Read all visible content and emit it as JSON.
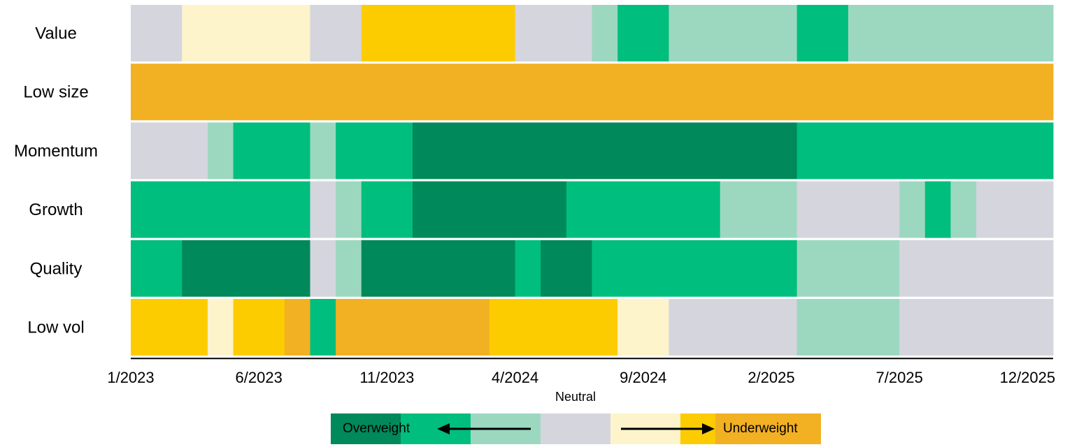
{
  "chart_data": {
    "type": "heatmap",
    "title": "",
    "x_tick_labels": [
      "1/2023",
      "6/2023",
      "11/2023",
      "4/2024",
      "9/2024",
      "2/2025",
      "7/2025",
      "12/2025"
    ],
    "x_start": "1/2023",
    "x_end": "12/2025",
    "months": 36,
    "levels": [
      "Strong overweight",
      "Overweight",
      "Mild overweight",
      "Neutral",
      "Mild underweight",
      "Underweight",
      "Strong underweight"
    ],
    "colors": {
      "strong_overweight": "#00895A",
      "overweight": "#00BE7D",
      "mild_overweight": "#9CD8C0",
      "neutral": "#D5D5DE",
      "mild_underweight": "#FDF4CB",
      "underweight": "#FDCC00",
      "strong_underweight": "#F2B023"
    },
    "rows": [
      {
        "name": "Value",
        "segments": [
          {
            "start": "1/2023",
            "months": 2,
            "level": "neutral"
          },
          {
            "start": "3/2023",
            "months": 5,
            "level": "mild_underweight"
          },
          {
            "start": "8/2023",
            "months": 2,
            "level": "neutral"
          },
          {
            "start": "10/2023",
            "months": 6,
            "level": "underweight"
          },
          {
            "start": "4/2024",
            "months": 3,
            "level": "neutral"
          },
          {
            "start": "7/2024",
            "months": 1,
            "level": "mild_overweight"
          },
          {
            "start": "8/2024",
            "months": 2,
            "level": "overweight"
          },
          {
            "start": "10/2024",
            "months": 5,
            "level": "mild_overweight"
          },
          {
            "start": "3/2025",
            "months": 2,
            "level": "overweight"
          },
          {
            "start": "5/2025",
            "months": 8,
            "level": "mild_overweight"
          }
        ]
      },
      {
        "name": "Low size",
        "segments": [
          {
            "start": "1/2023",
            "months": 36,
            "level": "strong_underweight"
          }
        ]
      },
      {
        "name": "Momentum",
        "segments": [
          {
            "start": "1/2023",
            "months": 3,
            "level": "neutral"
          },
          {
            "start": "4/2023",
            "months": 1,
            "level": "mild_overweight"
          },
          {
            "start": "5/2023",
            "months": 3,
            "level": "overweight"
          },
          {
            "start": "8/2023",
            "months": 1,
            "level": "mild_overweight"
          },
          {
            "start": "9/2023",
            "months": 3,
            "level": "overweight"
          },
          {
            "start": "12/2023",
            "months": 15,
            "level": "strong_overweight"
          },
          {
            "start": "3/2025",
            "months": 10,
            "level": "overweight"
          }
        ]
      },
      {
        "name": "Growth",
        "segments": [
          {
            "start": "1/2023",
            "months": 7,
            "level": "overweight"
          },
          {
            "start": "8/2023",
            "months": 1,
            "level": "neutral"
          },
          {
            "start": "9/2023",
            "months": 1,
            "level": "mild_overweight"
          },
          {
            "start": "10/2023",
            "months": 2,
            "level": "overweight"
          },
          {
            "start": "12/2023",
            "months": 6,
            "level": "strong_overweight"
          },
          {
            "start": "6/2024",
            "months": 6,
            "level": "overweight"
          },
          {
            "start": "12/2024",
            "months": 3,
            "level": "mild_overweight"
          },
          {
            "start": "3/2025",
            "months": 4,
            "level": "neutral"
          },
          {
            "start": "7/2025",
            "months": 1,
            "level": "mild_overweight"
          },
          {
            "start": "8/2025",
            "months": 1,
            "level": "overweight"
          },
          {
            "start": "9/2025",
            "months": 1,
            "level": "mild_overweight"
          },
          {
            "start": "10/2025",
            "months": 3,
            "level": "neutral"
          }
        ]
      },
      {
        "name": "Quality",
        "segments": [
          {
            "start": "1/2023",
            "months": 2,
            "level": "overweight"
          },
          {
            "start": "3/2023",
            "months": 5,
            "level": "strong_overweight"
          },
          {
            "start": "8/2023",
            "months": 1,
            "level": "neutral"
          },
          {
            "start": "9/2023",
            "months": 1,
            "level": "mild_overweight"
          },
          {
            "start": "10/2023",
            "months": 6,
            "level": "strong_overweight"
          },
          {
            "start": "4/2024",
            "months": 1,
            "level": "overweight"
          },
          {
            "start": "5/2024",
            "months": 2,
            "level": "strong_overweight"
          },
          {
            "start": "7/2024",
            "months": 8,
            "level": "overweight"
          },
          {
            "start": "3/2025",
            "months": 4,
            "level": "mild_overweight"
          },
          {
            "start": "7/2025",
            "months": 6,
            "level": "neutral"
          }
        ]
      },
      {
        "name": "Low vol",
        "segments": [
          {
            "start": "1/2023",
            "months": 3,
            "level": "underweight"
          },
          {
            "start": "4/2023",
            "months": 1,
            "level": "mild_underweight"
          },
          {
            "start": "5/2023",
            "months": 2,
            "level": "underweight"
          },
          {
            "start": "7/2023",
            "months": 1,
            "level": "strong_underweight"
          },
          {
            "start": "8/2023",
            "months": 1,
            "level": "overweight"
          },
          {
            "start": "9/2023",
            "months": 6,
            "level": "strong_underweight"
          },
          {
            "start": "3/2024",
            "months": 5,
            "level": "underweight"
          },
          {
            "start": "8/2024",
            "months": 2,
            "level": "mild_underweight"
          },
          {
            "start": "10/2024",
            "months": 5,
            "level": "neutral"
          },
          {
            "start": "3/2025",
            "months": 4,
            "level": "mild_overweight"
          },
          {
            "start": "7/2025",
            "months": 6,
            "level": "neutral"
          }
        ]
      }
    ],
    "legend": {
      "overweight_label": "Overweight",
      "neutral_label": "Neutral",
      "underweight_label": "Underweight",
      "swatches": [
        "strong_overweight",
        "overweight",
        "mild_overweight",
        "neutral",
        "mild_underweight",
        "underweight",
        "strong_underweight"
      ]
    }
  }
}
